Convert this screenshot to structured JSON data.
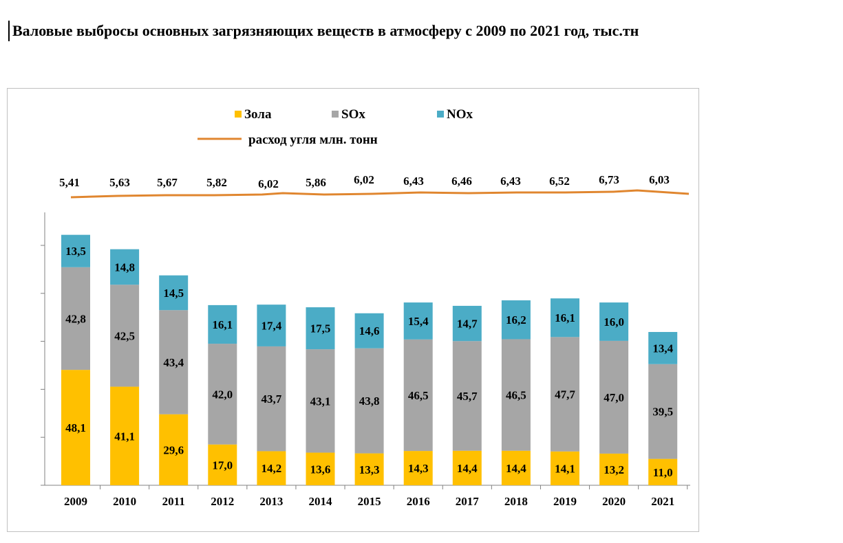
{
  "title": "Валовые выбросы основных загрязняющих  веществ в атмосферу с 2009 по 2021 год, тыс.тн",
  "colors": {
    "zola": "#ffc000",
    "sox": "#a6a6a6",
    "nox": "#4bacc6",
    "coal": "#e0862f"
  },
  "chart_data": {
    "type": "bar",
    "stacked": true,
    "categories": [
      "2009",
      "2010",
      "2011",
      "2012",
      "2013",
      "2014",
      "2015",
      "2016",
      "2017",
      "2018",
      "2019",
      "2020",
      "2021"
    ],
    "series": [
      {
        "name": "Зола",
        "values": [
          48.1,
          41.1,
          29.6,
          17.0,
          14.2,
          13.6,
          13.3,
          14.3,
          14.4,
          14.4,
          14.1,
          13.2,
          11.0
        ],
        "labels": [
          "48,1",
          "41,1",
          "29,6",
          "17,0",
          "14,2",
          "13,6",
          "13,3",
          "14,3",
          "14,4",
          "14,4",
          "14,1",
          "13,2",
          "11,0"
        ]
      },
      {
        "name": "SOx",
        "values": [
          42.8,
          42.5,
          43.4,
          42.0,
          43.7,
          43.1,
          43.8,
          46.5,
          45.7,
          46.5,
          47.7,
          47.0,
          39.5
        ],
        "labels": [
          "42,8",
          "42,5",
          "43,4",
          "42,0",
          "43,7",
          "43,1",
          "43,8",
          "46,5",
          "45,7",
          "46,5",
          "47,7",
          "47,0",
          "39,5"
        ]
      },
      {
        "name": "NOx",
        "values": [
          13.5,
          14.8,
          14.5,
          16.1,
          17.4,
          17.5,
          14.6,
          15.4,
          14.7,
          16.2,
          16.1,
          16.0,
          13.4
        ],
        "labels": [
          "13,5",
          "14,8",
          "14,5",
          "16,1",
          "17,4",
          "17,5",
          "14,6",
          "15,4",
          "14,7",
          "16,2",
          "16,1",
          "16,0",
          "13,4"
        ]
      }
    ],
    "line_series": {
      "name": "расход угля млн. тонн",
      "values": [
        5.41,
        5.63,
        5.67,
        5.82,
        6.02,
        5.86,
        6.02,
        6.43,
        6.46,
        6.43,
        6.52,
        6.73,
        6.03
      ],
      "labels": [
        "5,41",
        "5,63",
        "5,67",
        "5,82",
        "6,02",
        "5,86",
        "6,02",
        "6,43",
        "6,46",
        "6,43",
        "6,52",
        "6,73",
        "6,03"
      ]
    },
    "ylim": [
      0,
      105
    ],
    "legend_position": "top",
    "grid": false
  }
}
